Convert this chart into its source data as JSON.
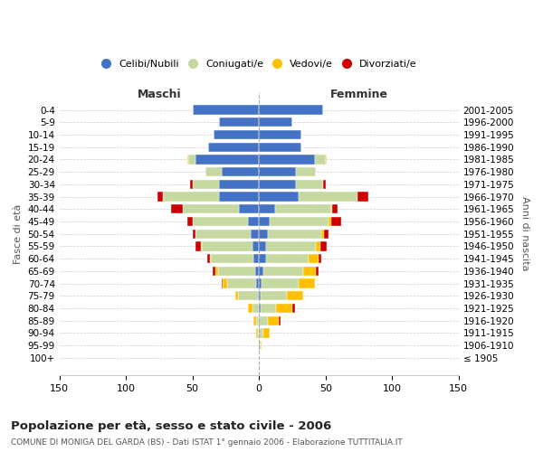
{
  "age_groups": [
    "100+",
    "95-99",
    "90-94",
    "85-89",
    "80-84",
    "75-79",
    "70-74",
    "65-69",
    "60-64",
    "55-59",
    "50-54",
    "45-49",
    "40-44",
    "35-39",
    "30-34",
    "25-29",
    "20-24",
    "15-19",
    "10-14",
    "5-9",
    "0-4"
  ],
  "birth_years": [
    "≤ 1905",
    "1906-1910",
    "1911-1915",
    "1916-1920",
    "1921-1925",
    "1926-1930",
    "1931-1935",
    "1936-1940",
    "1941-1945",
    "1946-1950",
    "1951-1955",
    "1956-1960",
    "1961-1965",
    "1966-1970",
    "1971-1975",
    "1976-1980",
    "1981-1985",
    "1986-1990",
    "1991-1995",
    "1996-2000",
    "2001-2005"
  ],
  "colors": {
    "celibi": "#4472c4",
    "coniugati": "#c5d9a0",
    "vedovi": "#ffc000",
    "divorziati": "#cc0000"
  },
  "maschi": {
    "celibi": [
      0,
      0,
      0,
      0,
      0,
      1,
      2,
      3,
      4,
      5,
      6,
      8,
      15,
      30,
      30,
      28,
      48,
      38,
      34,
      30,
      50
    ],
    "coniugati": [
      0,
      0,
      1,
      2,
      5,
      15,
      22,
      28,
      32,
      38,
      42,
      42,
      42,
      42,
      20,
      12,
      5,
      0,
      0,
      0,
      0
    ],
    "vedovi": [
      0,
      0,
      1,
      2,
      3,
      2,
      3,
      2,
      1,
      1,
      0,
      0,
      0,
      0,
      0,
      0,
      1,
      0,
      0,
      0,
      0
    ],
    "divorziati": [
      0,
      0,
      0,
      0,
      0,
      0,
      1,
      2,
      2,
      4,
      2,
      4,
      9,
      4,
      2,
      0,
      0,
      0,
      0,
      0,
      0
    ]
  },
  "femmine": {
    "celibi": [
      0,
      0,
      0,
      0,
      1,
      1,
      2,
      3,
      5,
      5,
      7,
      8,
      12,
      30,
      28,
      28,
      42,
      32,
      32,
      25,
      48
    ],
    "coniugati": [
      0,
      1,
      3,
      7,
      12,
      20,
      28,
      30,
      32,
      38,
      40,
      44,
      42,
      44,
      20,
      15,
      8,
      0,
      0,
      0,
      0
    ],
    "vedovi": [
      0,
      1,
      5,
      8,
      12,
      12,
      12,
      10,
      8,
      3,
      2,
      2,
      1,
      0,
      0,
      0,
      1,
      0,
      0,
      0,
      0
    ],
    "divorziati": [
      0,
      0,
      0,
      1,
      2,
      0,
      0,
      2,
      2,
      5,
      3,
      8,
      4,
      8,
      2,
      0,
      0,
      0,
      0,
      0,
      0
    ]
  },
  "title": "Popolazione per età, sesso e stato civile - 2006",
  "subtitle": "COMUNE DI MONIGA DEL GARDA (BS) - Dati ISTAT 1° gennaio 2006 - Elaborazione TUTTITALIA.IT",
  "ylabel_left": "Fasce di età",
  "ylabel_right": "Anni di nascita",
  "xlabel_maschi": "Maschi",
  "xlabel_femmine": "Femmine",
  "xlim": 150,
  "background": "#ffffff",
  "grid_color": "#cccccc"
}
